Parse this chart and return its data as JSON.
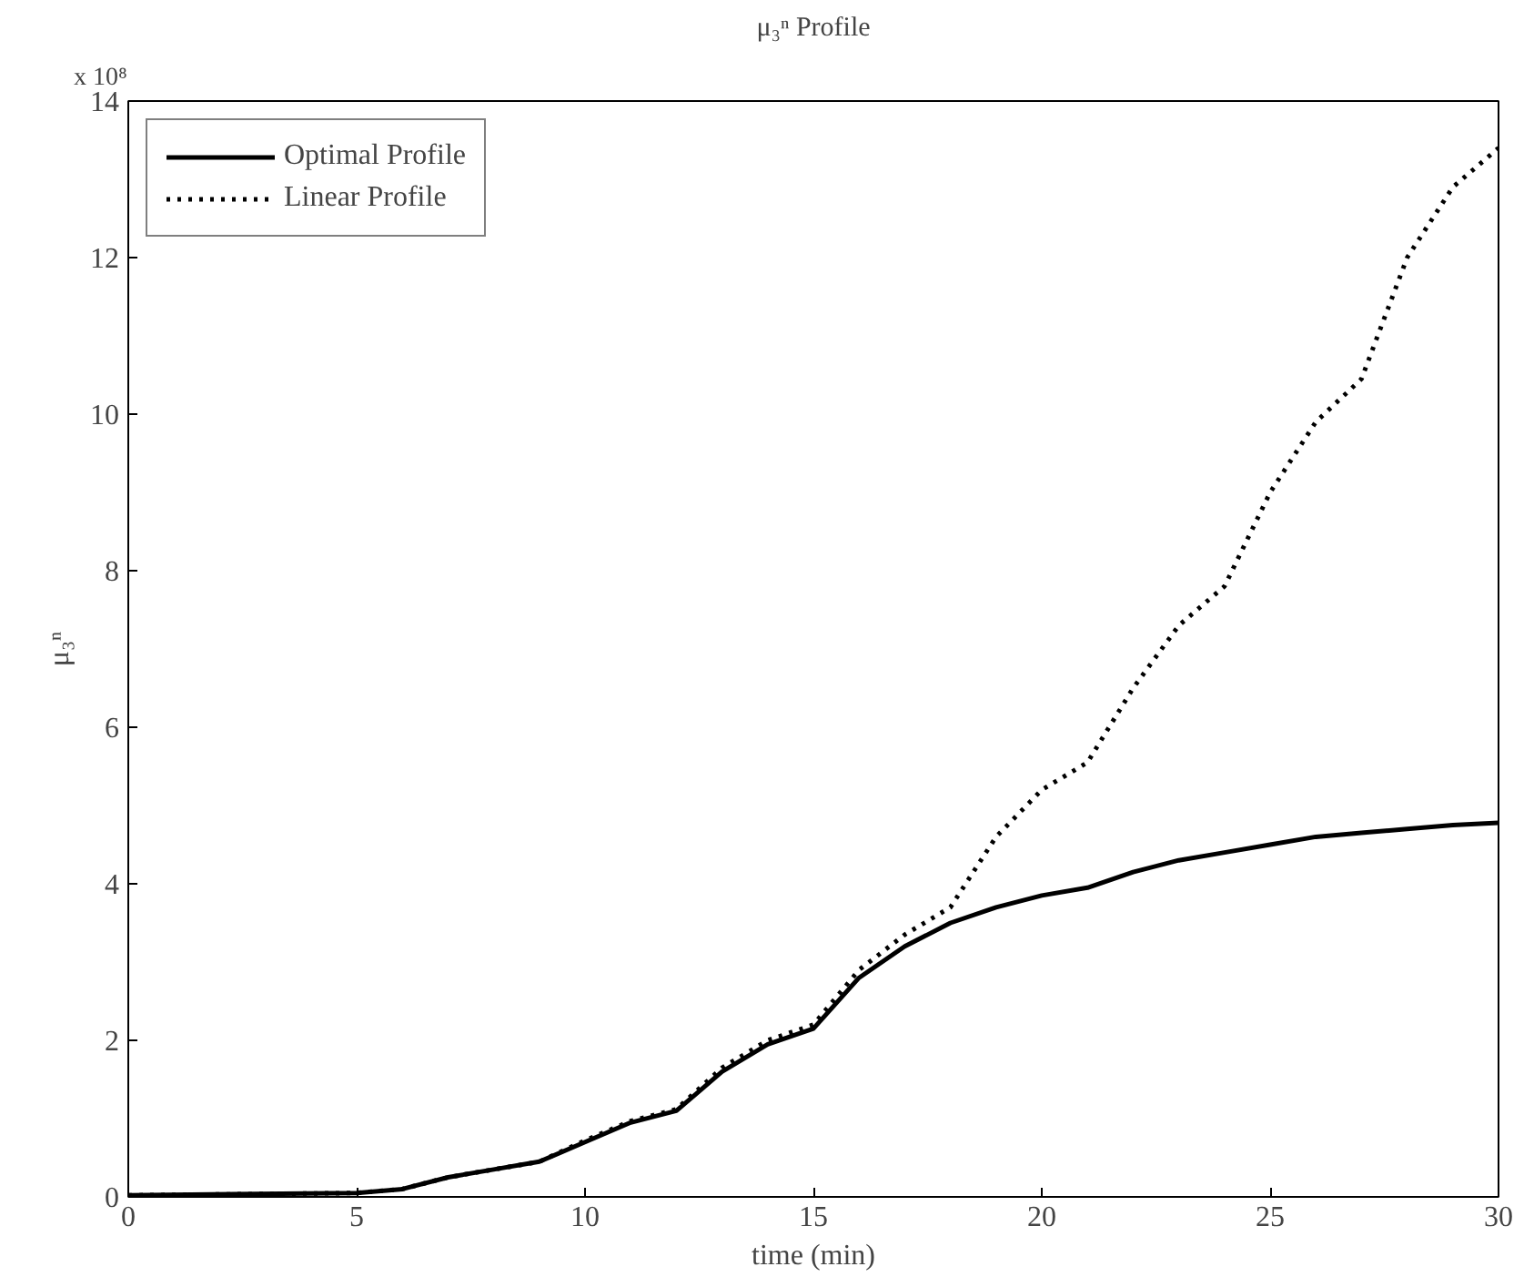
{
  "chart_data": {
    "type": "line",
    "title": "μ₃ⁿ Profile",
    "xlabel": "time (min)",
    "ylabel": "μ₃ⁿ",
    "annotations": [
      "x 10⁸"
    ],
    "x": [
      0,
      5,
      6,
      7,
      8,
      9,
      10,
      11,
      12,
      13,
      14,
      15,
      16,
      17,
      18,
      19,
      20,
      21,
      22,
      23,
      24,
      25,
      26,
      27,
      28,
      29,
      30
    ],
    "series": [
      {
        "name": "Optimal Profile",
        "color": "#000000",
        "line_style": "solid",
        "values": [
          0.02,
          0.05,
          0.1,
          0.25,
          0.35,
          0.45,
          0.7,
          0.95,
          1.1,
          1.6,
          1.95,
          2.15,
          2.8,
          3.2,
          3.5,
          3.7,
          3.85,
          3.95,
          4.15,
          4.3,
          4.4,
          4.5,
          4.6,
          4.65,
          4.7,
          4.75,
          4.78
        ]
      },
      {
        "name": "Linear Profile",
        "color": "#000000",
        "line_style": "dotted",
        "values": [
          0.02,
          0.05,
          0.1,
          0.25,
          0.35,
          0.45,
          0.72,
          0.97,
          1.12,
          1.65,
          2.0,
          2.2,
          2.9,
          3.35,
          3.7,
          4.6,
          5.2,
          5.55,
          6.5,
          7.3,
          7.8,
          9.0,
          9.9,
          10.45,
          12.0,
          12.9,
          13.4
        ]
      }
    ],
    "xlim": [
      0,
      30
    ],
    "ylim": [
      0,
      14
    ],
    "xticks": [
      0,
      5,
      10,
      15,
      20,
      25,
      30
    ],
    "yticks": [
      0,
      2,
      4,
      6,
      8,
      10,
      12,
      14
    ],
    "grid": false,
    "legend": "top left",
    "marker": "none"
  }
}
